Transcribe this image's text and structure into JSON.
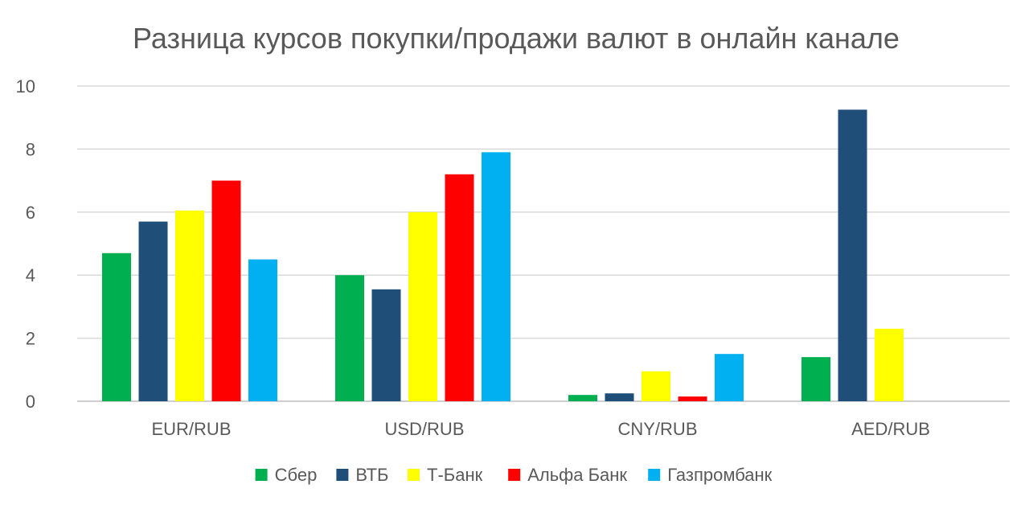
{
  "chart_data": {
    "type": "bar",
    "title": "Разница курсов покупки/продажи валют в онлайн канале",
    "xlabel": "",
    "ylabel": "",
    "categories": [
      "EUR/RUB",
      "USD/RUB",
      "CNY/RUB",
      "AED/RUB"
    ],
    "ylim": [
      0,
      10
    ],
    "yticks": [
      "0",
      "2",
      "4",
      "6",
      "8",
      "10"
    ],
    "grid": true,
    "legend_position": "bottom",
    "series": [
      {
        "name": "Сбер",
        "color": "#00B050",
        "values": [
          4.7,
          4.0,
          0.2,
          1.4
        ]
      },
      {
        "name": "ВТБ",
        "color": "#1F4E79",
        "values": [
          5.7,
          3.55,
          0.25,
          9.25
        ]
      },
      {
        "name": "Т-Банк",
        "color": "#FFFF00",
        "values": [
          6.05,
          6.0,
          0.95,
          2.3
        ]
      },
      {
        "name": "Альфа Банк",
        "color": "#FF0000",
        "values": [
          7.0,
          7.2,
          0.15,
          null
        ]
      },
      {
        "name": "Газпромбанк",
        "color": "#00B0F0",
        "values": [
          4.5,
          7.9,
          1.5,
          null
        ]
      }
    ]
  }
}
